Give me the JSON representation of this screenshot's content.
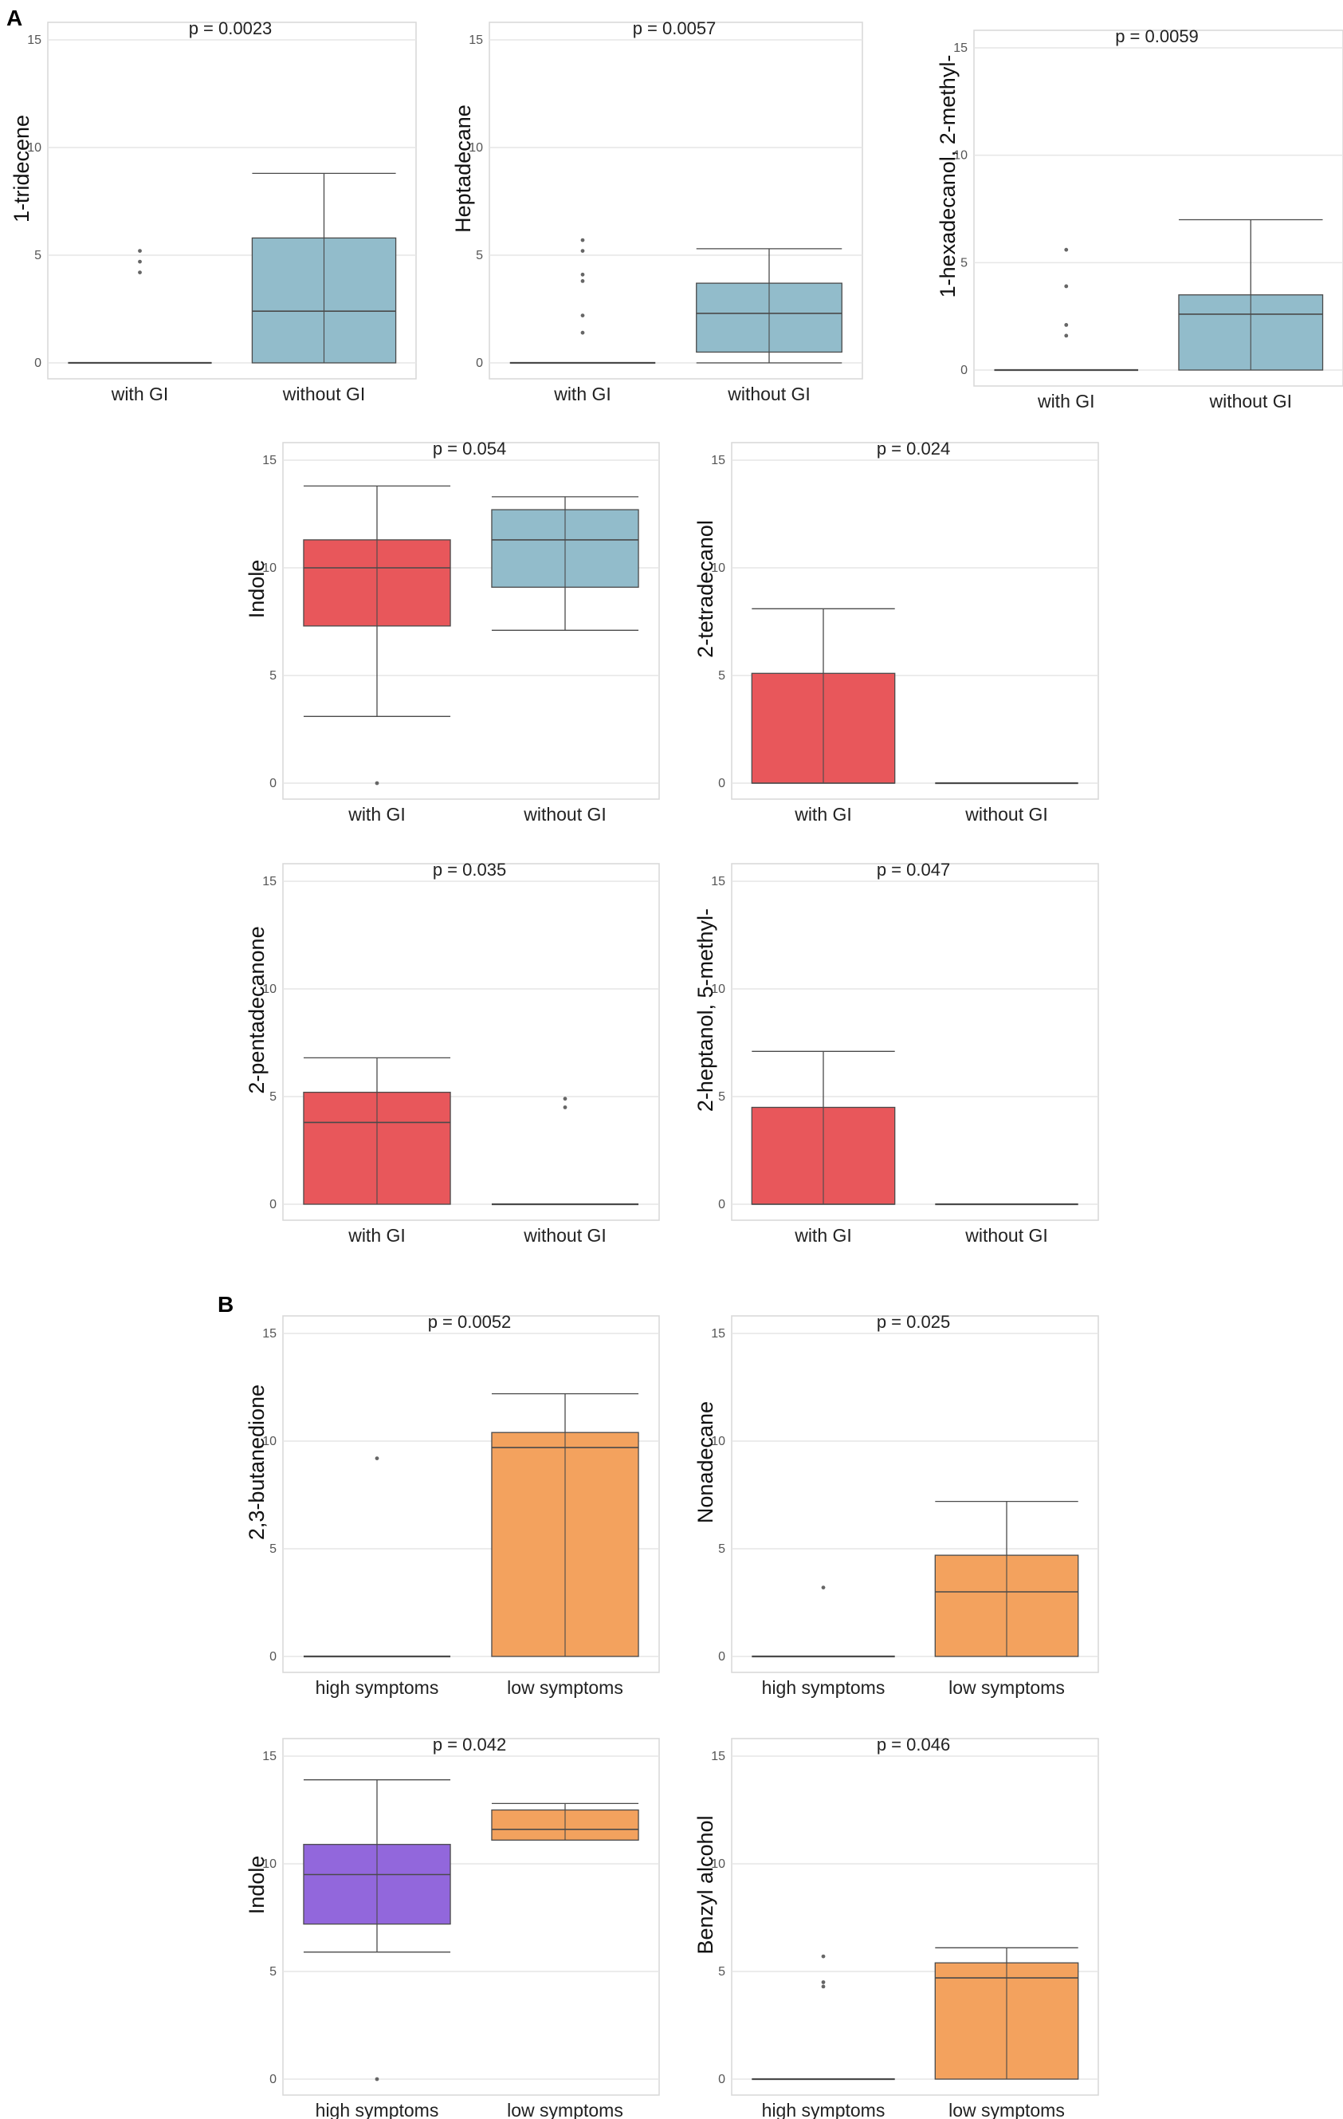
{
  "panel_labels": {
    "a": "A",
    "b": "B"
  },
  "colors": {
    "blue": "#92bccb",
    "red": "#e8575b",
    "orange": "#f3a25e",
    "purple": "#9267dc",
    "line": "#4a4a4a",
    "grid": "#e6e6e6",
    "frame": "#d7d7d7"
  },
  "chart_data": [
    {
      "type": "box",
      "panel": "A",
      "title": "p = 0.0023",
      "ylabel": "1-tridecene",
      "categories": [
        "with GI",
        "without GI"
      ],
      "ylim": [
        0,
        15
      ],
      "yticks": [
        0,
        5,
        10,
        15
      ],
      "boxes": [
        {
          "color": "blue",
          "min": 0,
          "q1": 0,
          "median": 0,
          "q3": 0,
          "max": 0,
          "outliers": [
            4.2,
            4.7,
            5.2
          ]
        },
        {
          "color": "blue",
          "min": 0,
          "q1": 0,
          "median": 2.4,
          "q3": 5.8,
          "max": 8.8,
          "outliers": []
        }
      ]
    },
    {
      "type": "box",
      "panel": "A",
      "title": "p = 0.0057",
      "ylabel": "Heptadecane",
      "categories": [
        "with GI",
        "without GI"
      ],
      "ylim": [
        0,
        15
      ],
      "yticks": [
        0,
        5,
        10,
        15
      ],
      "boxes": [
        {
          "color": "blue",
          "min": 0,
          "q1": 0,
          "median": 0,
          "q3": 0,
          "max": 0,
          "outliers": [
            1.4,
            2.2,
            3.8,
            4.1,
            5.2,
            5.7
          ]
        },
        {
          "color": "blue",
          "min": 0,
          "q1": 0.5,
          "median": 2.3,
          "q3": 3.7,
          "max": 5.3,
          "outliers": []
        }
      ]
    },
    {
      "type": "box",
      "panel": "A",
      "title": "p = 0.0059",
      "ylabel": "1-hexadecanol, 2-methyl-",
      "categories": [
        "with GI",
        "without GI"
      ],
      "ylim": [
        0,
        15
      ],
      "yticks": [
        0,
        5,
        10,
        15
      ],
      "boxes": [
        {
          "color": "blue",
          "min": 0,
          "q1": 0,
          "median": 0,
          "q3": 0,
          "max": 0,
          "outliers": [
            1.6,
            2.1,
            3.9,
            5.6
          ]
        },
        {
          "color": "blue",
          "min": 0,
          "q1": 0,
          "median": 2.6,
          "q3": 3.5,
          "max": 7.0,
          "outliers": []
        }
      ]
    },
    {
      "type": "box",
      "panel": "A",
      "title": "p = 0.054",
      "ylabel": "Indole",
      "categories": [
        "with GI",
        "without GI"
      ],
      "ylim": [
        0,
        15
      ],
      "yticks": [
        0,
        5,
        10,
        15
      ],
      "boxes": [
        {
          "color": "red",
          "min": 3.1,
          "q1": 7.3,
          "median": 10.0,
          "q3": 11.3,
          "max": 13.8,
          "outliers": [
            0
          ]
        },
        {
          "color": "blue",
          "min": 7.1,
          "q1": 9.1,
          "median": 11.3,
          "q3": 12.7,
          "max": 13.3,
          "outliers": []
        }
      ]
    },
    {
      "type": "box",
      "panel": "A",
      "title": "p = 0.024",
      "ylabel": "2-tetradecanol",
      "categories": [
        "with GI",
        "without GI"
      ],
      "ylim": [
        0,
        15
      ],
      "yticks": [
        0,
        5,
        10,
        15
      ],
      "boxes": [
        {
          "color": "red",
          "min": 0,
          "q1": 0,
          "median": 0,
          "q3": 5.1,
          "max": 8.1,
          "outliers": []
        },
        {
          "color": "red",
          "min": 0,
          "q1": 0,
          "median": 0,
          "q3": 0,
          "max": 0,
          "outliers": []
        }
      ]
    },
    {
      "type": "box",
      "panel": "A",
      "title": "p = 0.035",
      "ylabel": "2-pentadecanone",
      "categories": [
        "with GI",
        "without GI"
      ],
      "ylim": [
        0,
        15
      ],
      "yticks": [
        0,
        5,
        10,
        15
      ],
      "boxes": [
        {
          "color": "red",
          "min": 0,
          "q1": 0,
          "median": 3.8,
          "q3": 5.2,
          "max": 6.8,
          "outliers": []
        },
        {
          "color": "red",
          "min": 0,
          "q1": 0,
          "median": 0,
          "q3": 0,
          "max": 0,
          "outliers": [
            4.5,
            4.9
          ]
        }
      ]
    },
    {
      "type": "box",
      "panel": "A",
      "title": "p = 0.047",
      "ylabel": "2-heptanol, 5-methyl-",
      "categories": [
        "with GI",
        "without GI"
      ],
      "ylim": [
        0,
        15
      ],
      "yticks": [
        0,
        5,
        10,
        15
      ],
      "boxes": [
        {
          "color": "red",
          "min": 0,
          "q1": 0,
          "median": 0,
          "q3": 4.5,
          "max": 7.1,
          "outliers": []
        },
        {
          "color": "red",
          "min": 0,
          "q1": 0,
          "median": 0,
          "q3": 0,
          "max": 0,
          "outliers": []
        }
      ]
    },
    {
      "type": "box",
      "panel": "B",
      "title": "p = 0.0052",
      "ylabel": "2,3-butanedione",
      "categories": [
        "high symptoms",
        "low symptoms"
      ],
      "ylim": [
        0,
        15
      ],
      "yticks": [
        0,
        5,
        10,
        15
      ],
      "boxes": [
        {
          "color": "orange",
          "min": 0,
          "q1": 0,
          "median": 0,
          "q3": 0,
          "max": 0,
          "outliers": [
            9.2
          ]
        },
        {
          "color": "orange",
          "min": 0,
          "q1": 0,
          "median": 9.7,
          "q3": 10.4,
          "max": 12.2,
          "outliers": []
        }
      ]
    },
    {
      "type": "box",
      "panel": "B",
      "title": "p = 0.025",
      "ylabel": "Nonadecane",
      "categories": [
        "high symptoms",
        "low symptoms"
      ],
      "ylim": [
        0,
        15
      ],
      "yticks": [
        0,
        5,
        10,
        15
      ],
      "boxes": [
        {
          "color": "orange",
          "min": 0,
          "q1": 0,
          "median": 0,
          "q3": 0,
          "max": 0,
          "outliers": [
            3.2
          ]
        },
        {
          "color": "orange",
          "min": 0,
          "q1": 0,
          "median": 3.0,
          "q3": 4.7,
          "max": 7.2,
          "outliers": []
        }
      ]
    },
    {
      "type": "box",
      "panel": "B",
      "title": "p = 0.042",
      "ylabel": "Indole",
      "categories": [
        "high symptoms",
        "low symptoms"
      ],
      "ylim": [
        0,
        15
      ],
      "yticks": [
        0,
        5,
        10,
        15
      ],
      "boxes": [
        {
          "color": "purple",
          "min": 5.9,
          "q1": 7.2,
          "median": 9.5,
          "q3": 10.9,
          "max": 13.9,
          "outliers": [
            0
          ]
        },
        {
          "color": "orange",
          "min": 11.1,
          "q1": 11.1,
          "median": 11.6,
          "q3": 12.5,
          "max": 12.8,
          "outliers": []
        }
      ]
    },
    {
      "type": "box",
      "panel": "B",
      "title": "p = 0.046",
      "ylabel": "Benzyl alcohol",
      "categories": [
        "high symptoms",
        "low symptoms"
      ],
      "ylim": [
        0,
        15
      ],
      "yticks": [
        0,
        5,
        10,
        15
      ],
      "boxes": [
        {
          "color": "orange",
          "min": 0,
          "q1": 0,
          "median": 0,
          "q3": 0,
          "max": 0,
          "outliers": [
            4.3,
            4.5,
            5.7
          ]
        },
        {
          "color": "orange",
          "min": 0,
          "q1": 0,
          "median": 4.7,
          "q3": 5.4,
          "max": 6.1,
          "outliers": []
        }
      ]
    }
  ]
}
